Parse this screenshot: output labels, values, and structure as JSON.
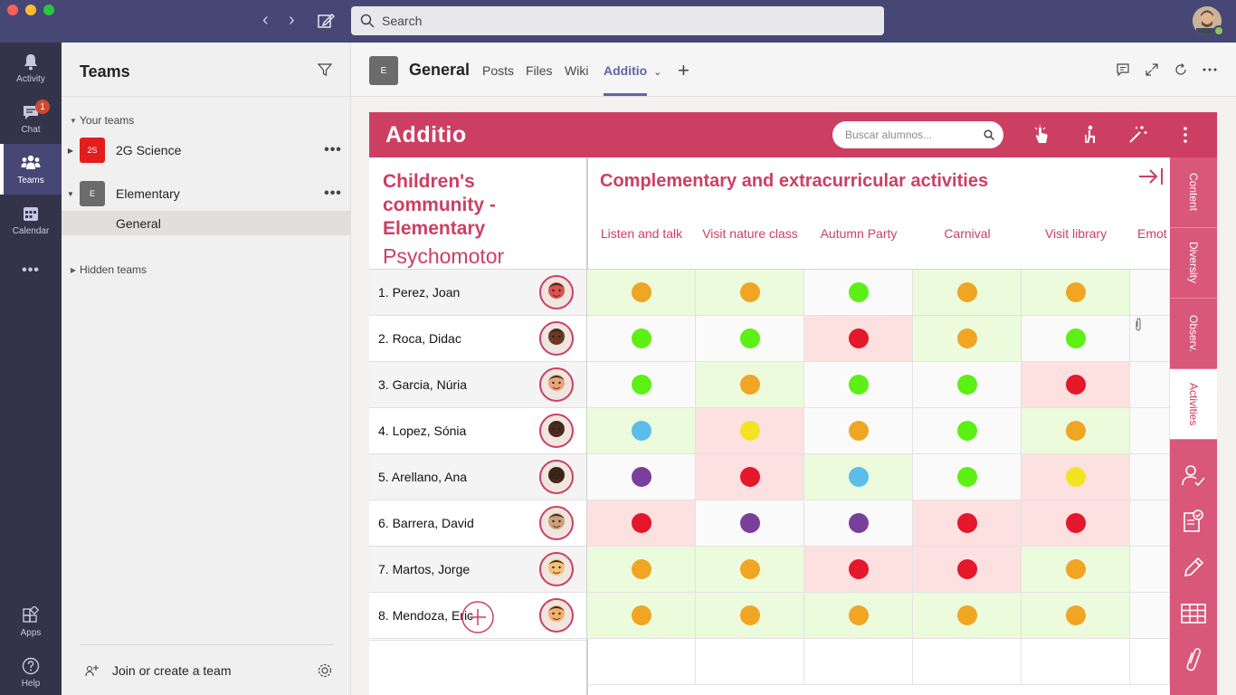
{
  "titlebar": {
    "search_placeholder": "Search",
    "window_controls": [
      {
        "name": "close",
        "color": "#fc5f57"
      },
      {
        "name": "minimize",
        "color": "#febc2e"
      },
      {
        "name": "maximize",
        "color": "#28c840"
      }
    ]
  },
  "appbar": {
    "items": [
      {
        "label": "Activity",
        "icon": "bell-icon",
        "badge": ""
      },
      {
        "label": "Chat",
        "icon": "chat-icon",
        "badge": "1"
      },
      {
        "label": "Teams",
        "icon": "teams-icon",
        "badge": ""
      },
      {
        "label": "Calendar",
        "icon": "calendar-icon",
        "badge": ""
      }
    ],
    "more_label": "•••",
    "bottom": [
      {
        "label": "Apps",
        "icon": "apps-icon"
      },
      {
        "label": "Help",
        "icon": "help-icon"
      }
    ]
  },
  "teams_panel": {
    "title": "Teams",
    "your_teams_label": "Your teams",
    "teams": [
      {
        "tile": "2S",
        "name": "2G Science",
        "tile_color": "#e31d1d",
        "more": "•••"
      },
      {
        "tile": "E",
        "name": "Elementary",
        "tile_color": "#6b6b6b",
        "more": "•••"
      }
    ],
    "channel": "General",
    "hidden_teams_label": "Hidden teams",
    "join_label": "Join or create a team"
  },
  "channel_header": {
    "tile": "E",
    "title": "General",
    "tabs": [
      "Posts",
      "Files",
      "Wiki",
      "Additio"
    ],
    "active_tab": "Additio",
    "add_tab": "+"
  },
  "additio": {
    "logo": "Additio",
    "search_placeholder": "Buscar alumnos...",
    "course_title": "Children's community - Elementary",
    "subject": "Psychomotor",
    "heading": "Complementary and extracurricular activities",
    "columns": [
      "Listen and talk",
      "Visit nature class",
      "Autumn Party",
      "Carnival",
      "Visit library",
      "Emot"
    ],
    "students": [
      {
        "name": "1. Perez, Joan",
        "avatar_color": "#d9534f",
        "grades": [
          "orange",
          "orange",
          "green",
          "orange",
          "orange"
        ],
        "fills": [
          "g",
          "g",
          "w",
          "g",
          "g"
        ]
      },
      {
        "name": "2. Roca, Didac",
        "avatar_color": "#6b3a22",
        "grades": [
          "green",
          "green",
          "red",
          "orange",
          "green"
        ],
        "fills": [
          "w",
          "w",
          "r",
          "g",
          "w"
        ]
      },
      {
        "name": "3. Garcia, Núria",
        "avatar_color": "#e8a47c",
        "grades": [
          "green",
          "orange",
          "green",
          "green",
          "red"
        ],
        "fills": [
          "w",
          "g",
          "w",
          "w",
          "r"
        ]
      },
      {
        "name": "4. Lopez, Sónia",
        "avatar_color": "#4a2a1e",
        "grades": [
          "blue",
          "yellow",
          "orange",
          "green",
          "orange"
        ],
        "fills": [
          "g",
          "r",
          "w",
          "w",
          "g"
        ]
      },
      {
        "name": "5. Arellano, Ana",
        "avatar_color": "#3b2418",
        "grades": [
          "purple",
          "red",
          "blue",
          "green",
          "yellow"
        ],
        "fills": [
          "w",
          "r",
          "g",
          "w",
          "r"
        ]
      },
      {
        "name": "6. Barrera, David",
        "avatar_color": "#c9a27a",
        "grades": [
          "red",
          "purple",
          "purple",
          "red",
          "red"
        ],
        "fills": [
          "r",
          "w",
          "w",
          "r",
          "r"
        ]
      },
      {
        "name": "7. Martos, Jorge",
        "avatar_color": "#f2c27a",
        "grades": [
          "orange",
          "orange",
          "red",
          "red",
          "orange"
        ],
        "fills": [
          "g",
          "g",
          "r",
          "r",
          "g"
        ]
      },
      {
        "name": "8. Mendoza, Eric",
        "avatar_color": "#f0b070",
        "grades": [
          "orange",
          "orange",
          "orange",
          "orange",
          "orange"
        ],
        "fills": [
          "g",
          "g",
          "g",
          "g",
          "g"
        ]
      }
    ],
    "side_tabs": [
      "Content",
      "Diversity",
      "Observ.",
      "Activities"
    ],
    "active_side_tab": "Activities",
    "grade_colors": {
      "orange": "#f0a523",
      "green": "#5cf015",
      "red": "#e4172b",
      "blue": "#5cbcea",
      "yellow": "#f2e424",
      "purple": "#7a3f9a"
    },
    "fill_colors": {
      "g": "#ebfbdc",
      "r": "#fde0e0",
      "w": "#fafafa"
    }
  }
}
